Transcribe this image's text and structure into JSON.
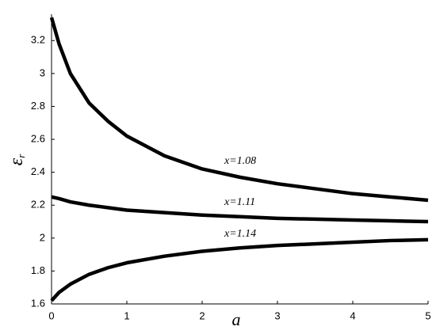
{
  "chart_data": {
    "type": "line",
    "x_label": "a",
    "y_label": {
      "symbol": "ε",
      "subscript": "r"
    },
    "x": [
      0,
      0.1,
      0.25,
      0.5,
      0.75,
      1,
      1.5,
      2,
      2.5,
      3,
      3.5,
      4,
      4.5,
      5
    ],
    "series": [
      {
        "name": "x=1.08",
        "color": "#000000",
        "values": [
          3.34,
          3.18,
          3.0,
          2.82,
          2.71,
          2.62,
          2.5,
          2.42,
          2.37,
          2.33,
          2.3,
          2.27,
          2.25,
          2.23
        ]
      },
      {
        "name": "x=1.11",
        "color": "#000000",
        "values": [
          2.25,
          2.24,
          2.22,
          2.2,
          2.185,
          2.17,
          2.155,
          2.14,
          2.13,
          2.12,
          2.115,
          2.11,
          2.105,
          2.1
        ]
      },
      {
        "name": "x=1.14",
        "color": "#000000",
        "values": [
          1.62,
          1.67,
          1.72,
          1.78,
          1.82,
          1.85,
          1.89,
          1.92,
          1.94,
          1.955,
          1.965,
          1.975,
          1.985,
          1.99
        ]
      }
    ],
    "xlim": [
      0,
      5
    ],
    "xticks": [
      0,
      1,
      2,
      3,
      4,
      5
    ],
    "ylim": [
      1.6,
      3.36
    ],
    "yticks": [
      1.6,
      1.8,
      2,
      2.2,
      2.4,
      2.6,
      2.8,
      3,
      3.2
    ]
  }
}
